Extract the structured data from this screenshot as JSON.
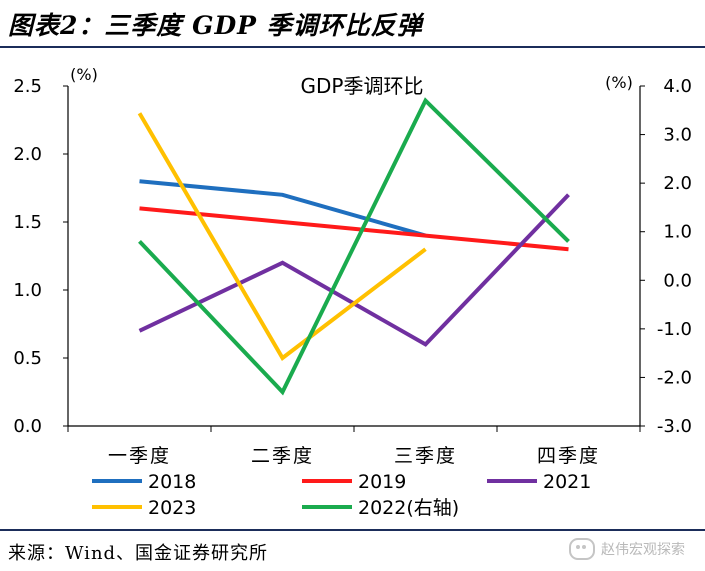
{
  "page": {
    "title": "图表2：三季度 GDP 季调环比反弹",
    "source": "来源：Wind、国金证券研究所",
    "watermark": "赵伟宏观探索"
  },
  "chart_data": {
    "type": "line",
    "title": "GDP季调环比",
    "categories": [
      "一季度",
      "二季度",
      "三季度",
      "四季度"
    ],
    "y_left": {
      "unit": "(%)",
      "ylim": [
        0,
        2.5
      ],
      "ticks": [
        "0.0",
        "0.5",
        "1.0",
        "1.5",
        "2.0",
        "2.5"
      ]
    },
    "y_right": {
      "unit": "(%)",
      "ylim": [
        -3,
        4
      ],
      "ticks": [
        "-3.0",
        "-2.0",
        "-1.0",
        "0.0",
        "1.0",
        "2.0",
        "3.0",
        "4.0"
      ]
    },
    "grid": false,
    "legend_position": "bottom",
    "series": [
      {
        "name": "2018",
        "axis": "left",
        "color": "#1f6fbf",
        "values": [
          1.8,
          1.7,
          1.4,
          null
        ]
      },
      {
        "name": "2019",
        "axis": "left",
        "color": "#ff1a1a",
        "values": [
          1.6,
          1.5,
          1.4,
          1.3
        ]
      },
      {
        "name": "2021",
        "axis": "left",
        "color": "#7030a0",
        "values": [
          0.7,
          1.2,
          0.6,
          1.7
        ]
      },
      {
        "name": "2023",
        "axis": "left",
        "color": "#ffc000",
        "values": [
          2.3,
          0.5,
          1.3,
          null
        ]
      },
      {
        "name": "2022(右轴)",
        "axis": "right",
        "color": "#1aab4e",
        "values": [
          0.8,
          -2.3,
          3.7,
          0.8
        ]
      }
    ]
  }
}
